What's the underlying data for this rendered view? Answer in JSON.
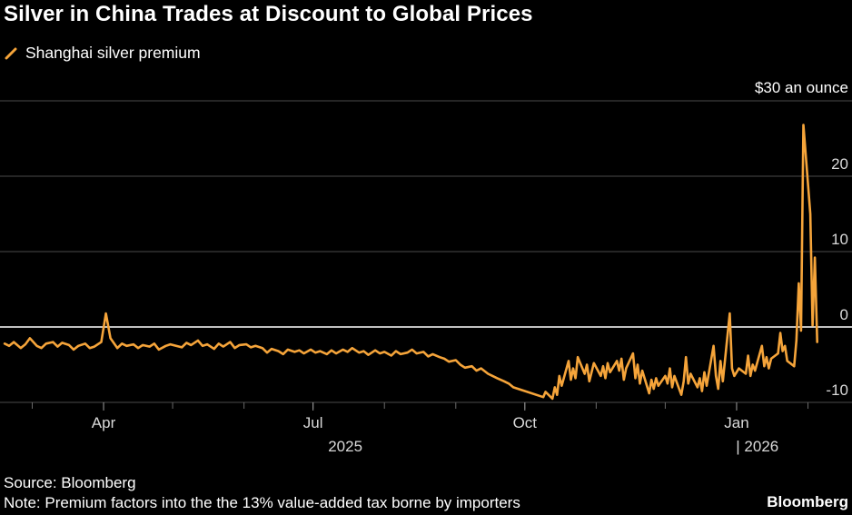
{
  "chart_data": {
    "type": "line",
    "title": "Silver in China Trades at Discount to Global Prices",
    "unit_label": "$30 an ounce",
    "y_ticks": [
      {
        "value": 20,
        "label": "20"
      },
      {
        "value": 10,
        "label": "10"
      },
      {
        "value": 0,
        "label": "0"
      },
      {
        "value": -10,
        "label": "-10"
      }
    ],
    "ylim": [
      -10,
      30
    ],
    "x_range": [
      "2025-02-15",
      "2026-02-15"
    ],
    "x_ticks": [
      {
        "date": "2025-04-01",
        "label": "Apr"
      },
      {
        "date": "2025-07-01",
        "label": "Jul"
      },
      {
        "date": "2025-10-01",
        "label": "Oct"
      },
      {
        "date": "2026-01-01",
        "label": "Jan"
      }
    ],
    "year_labels": [
      {
        "date": "2025-07-15",
        "label": "2025"
      },
      {
        "date": "2026-01-10",
        "label": "|  2026"
      }
    ],
    "legend": {
      "position": "top-left"
    },
    "grid": true,
    "series": [
      {
        "name": "Shanghai silver premium",
        "color": "#f5a43a",
        "points": [
          [
            "2025-02-17",
            -2.2
          ],
          [
            "2025-02-19",
            -2.5
          ],
          [
            "2025-02-21",
            -2.0
          ],
          [
            "2025-02-24",
            -2.8
          ],
          [
            "2025-02-26",
            -2.3
          ],
          [
            "2025-02-28",
            -1.5
          ],
          [
            "2025-03-03",
            -2.5
          ],
          [
            "2025-03-05",
            -2.8
          ],
          [
            "2025-03-07",
            -2.2
          ],
          [
            "2025-03-10",
            -2.0
          ],
          [
            "2025-03-12",
            -2.6
          ],
          [
            "2025-03-14",
            -2.1
          ],
          [
            "2025-03-17",
            -2.4
          ],
          [
            "2025-03-19",
            -3.0
          ],
          [
            "2025-03-21",
            -2.5
          ],
          [
            "2025-03-24",
            -2.2
          ],
          [
            "2025-03-26",
            -2.8
          ],
          [
            "2025-03-28",
            -2.6
          ],
          [
            "2025-03-31",
            -2.0
          ],
          [
            "2025-04-02",
            1.8
          ],
          [
            "2025-04-04",
            -1.5
          ],
          [
            "2025-04-07",
            -2.8
          ],
          [
            "2025-04-09",
            -2.2
          ],
          [
            "2025-04-11",
            -2.5
          ],
          [
            "2025-04-14",
            -2.3
          ],
          [
            "2025-04-16",
            -2.8
          ],
          [
            "2025-04-18",
            -2.4
          ],
          [
            "2025-04-21",
            -2.6
          ],
          [
            "2025-04-23",
            -2.2
          ],
          [
            "2025-04-25",
            -3.0
          ],
          [
            "2025-04-28",
            -2.5
          ],
          [
            "2025-04-30",
            -2.3
          ],
          [
            "2025-05-05",
            -2.7
          ],
          [
            "2025-05-07",
            -2.1
          ],
          [
            "2025-05-09",
            -2.4
          ],
          [
            "2025-05-12",
            -1.8
          ],
          [
            "2025-05-14",
            -2.5
          ],
          [
            "2025-05-16",
            -2.3
          ],
          [
            "2025-05-19",
            -2.9
          ],
          [
            "2025-05-21",
            -2.2
          ],
          [
            "2025-05-23",
            -2.6
          ],
          [
            "2025-05-26",
            -2.0
          ],
          [
            "2025-05-28",
            -2.8
          ],
          [
            "2025-05-30",
            -2.4
          ],
          [
            "2025-06-02",
            -2.3
          ],
          [
            "2025-06-04",
            -2.7
          ],
          [
            "2025-06-06",
            -2.5
          ],
          [
            "2025-06-09",
            -2.8
          ],
          [
            "2025-06-11",
            -3.4
          ],
          [
            "2025-06-13",
            -2.9
          ],
          [
            "2025-06-16",
            -3.2
          ],
          [
            "2025-06-18",
            -3.6
          ],
          [
            "2025-06-20",
            -3.0
          ],
          [
            "2025-06-23",
            -3.3
          ],
          [
            "2025-06-25",
            -3.1
          ],
          [
            "2025-06-27",
            -3.5
          ],
          [
            "2025-06-30",
            -3.0
          ],
          [
            "2025-07-02",
            -3.4
          ],
          [
            "2025-07-04",
            -3.2
          ],
          [
            "2025-07-07",
            -3.6
          ],
          [
            "2025-07-09",
            -3.1
          ],
          [
            "2025-07-11",
            -3.5
          ],
          [
            "2025-07-14",
            -3.0
          ],
          [
            "2025-07-16",
            -3.3
          ],
          [
            "2025-07-18",
            -2.8
          ],
          [
            "2025-07-21",
            -3.4
          ],
          [
            "2025-07-23",
            -3.2
          ],
          [
            "2025-07-25",
            -3.7
          ],
          [
            "2025-07-28",
            -3.1
          ],
          [
            "2025-07-30",
            -3.5
          ],
          [
            "2025-08-01",
            -3.3
          ],
          [
            "2025-08-04",
            -3.8
          ],
          [
            "2025-08-06",
            -3.2
          ],
          [
            "2025-08-08",
            -3.6
          ],
          [
            "2025-08-11",
            -3.4
          ],
          [
            "2025-08-13",
            -3.0
          ],
          [
            "2025-08-15",
            -3.5
          ],
          [
            "2025-08-18",
            -3.3
          ],
          [
            "2025-08-20",
            -3.9
          ],
          [
            "2025-08-22",
            -3.6
          ],
          [
            "2025-08-25",
            -4.0
          ],
          [
            "2025-08-27",
            -4.2
          ],
          [
            "2025-08-29",
            -4.6
          ],
          [
            "2025-09-01",
            -4.4
          ],
          [
            "2025-09-03",
            -5.0
          ],
          [
            "2025-09-05",
            -5.4
          ],
          [
            "2025-09-08",
            -5.2
          ],
          [
            "2025-09-10",
            -5.8
          ],
          [
            "2025-09-12",
            -5.5
          ],
          [
            "2025-09-15",
            -6.2
          ],
          [
            "2025-09-17",
            -6.5
          ],
          [
            "2025-09-19",
            -6.8
          ],
          [
            "2025-09-22",
            -7.2
          ],
          [
            "2025-09-24",
            -7.5
          ],
          [
            "2025-09-26",
            -8.0
          ],
          [
            "2025-09-29",
            -8.3
          ],
          [
            "2025-10-09",
            -9.3
          ],
          [
            "2025-10-10",
            -8.6
          ],
          [
            "2025-10-13",
            -9.5
          ],
          [
            "2025-10-14",
            -8.0
          ],
          [
            "2025-10-15",
            -9.0
          ],
          [
            "2025-10-16",
            -6.5
          ],
          [
            "2025-10-17",
            -7.8
          ],
          [
            "2025-10-20",
            -4.5
          ],
          [
            "2025-10-21",
            -7.0
          ],
          [
            "2025-10-22",
            -5.5
          ],
          [
            "2025-10-23",
            -6.8
          ],
          [
            "2025-10-24",
            -4.0
          ],
          [
            "2025-10-27",
            -6.2
          ],
          [
            "2025-10-28",
            -5.0
          ],
          [
            "2025-10-29",
            -7.2
          ],
          [
            "2025-10-30",
            -6.0
          ],
          [
            "2025-10-31",
            -4.8
          ],
          [
            "2025-11-03",
            -6.5
          ],
          [
            "2025-11-04",
            -5.2
          ],
          [
            "2025-11-05",
            -6.8
          ],
          [
            "2025-11-06",
            -4.8
          ],
          [
            "2025-11-07",
            -6.0
          ],
          [
            "2025-11-10",
            -4.5
          ],
          [
            "2025-11-11",
            -5.8
          ],
          [
            "2025-11-12",
            -4.2
          ],
          [
            "2025-11-13",
            -7.0
          ],
          [
            "2025-11-14",
            -5.5
          ],
          [
            "2025-11-17",
            -3.5
          ],
          [
            "2025-11-18",
            -6.8
          ],
          [
            "2025-11-19",
            -5.0
          ],
          [
            "2025-11-20",
            -7.5
          ],
          [
            "2025-11-21",
            -5.8
          ],
          [
            "2025-11-24",
            -8.8
          ],
          [
            "2025-11-25",
            -7.0
          ],
          [
            "2025-11-26",
            -8.2
          ],
          [
            "2025-11-27",
            -6.8
          ],
          [
            "2025-11-28",
            -7.8
          ],
          [
            "2025-12-01",
            -6.5
          ],
          [
            "2025-12-02",
            -7.5
          ],
          [
            "2025-12-03",
            -5.5
          ],
          [
            "2025-12-04",
            -8.0
          ],
          [
            "2025-12-05",
            -6.5
          ],
          [
            "2025-12-08",
            -9.0
          ],
          [
            "2025-12-09",
            -7.2
          ],
          [
            "2025-12-10",
            -4.0
          ],
          [
            "2025-12-11",
            -7.5
          ],
          [
            "2025-12-12",
            -6.2
          ],
          [
            "2025-12-15",
            -8.0
          ],
          [
            "2025-12-16",
            -6.8
          ],
          [
            "2025-12-17",
            -8.5
          ],
          [
            "2025-12-18",
            -6.0
          ],
          [
            "2025-12-19",
            -7.8
          ],
          [
            "2025-12-22",
            -2.5
          ],
          [
            "2025-12-23",
            -6.5
          ],
          [
            "2025-12-24",
            -8.2
          ],
          [
            "2025-12-25",
            -4.5
          ],
          [
            "2025-12-26",
            -7.2
          ],
          [
            "2025-12-29",
            1.8
          ],
          [
            "2025-12-30",
            -5.5
          ],
          [
            "2025-12-31",
            -6.5
          ],
          [
            "2026-01-02",
            -5.5
          ],
          [
            "2026-01-05",
            -6.2
          ],
          [
            "2026-01-06",
            -3.8
          ],
          [
            "2026-01-07",
            -6.5
          ],
          [
            "2026-01-08",
            -5.0
          ],
          [
            "2026-01-09",
            -5.8
          ],
          [
            "2026-01-12",
            -2.5
          ],
          [
            "2026-01-13",
            -5.2
          ],
          [
            "2026-01-14",
            -4.0
          ],
          [
            "2026-01-15",
            -5.5
          ],
          [
            "2026-01-16",
            -4.2
          ],
          [
            "2026-01-19",
            -3.5
          ],
          [
            "2026-01-20",
            -0.8
          ],
          [
            "2026-01-21",
            -3.2
          ],
          [
            "2026-01-22",
            -2.5
          ],
          [
            "2026-01-23",
            -4.5
          ],
          [
            "2026-01-26",
            -5.2
          ],
          [
            "2026-01-27",
            -1.8
          ],
          [
            "2026-01-28",
            5.8
          ],
          [
            "2026-01-29",
            -0.5
          ],
          [
            "2026-01-30",
            26.8
          ],
          [
            "2026-02-02",
            15.0
          ],
          [
            "2026-02-03",
            0.2
          ],
          [
            "2026-02-04",
            9.2
          ],
          [
            "2026-02-05",
            -2.0
          ]
        ]
      }
    ]
  },
  "footer": {
    "source": "Source: Bloomberg",
    "note": "Note: Premium factors into the the 13% value-added tax borne by importers",
    "brand": "Bloomberg"
  }
}
